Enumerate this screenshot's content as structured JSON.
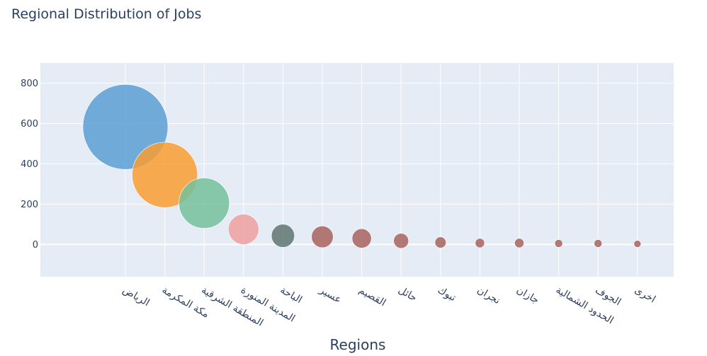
{
  "chart_data": {
    "type": "scatter",
    "variant": "bubble",
    "title": "Regional Distribution of Jobs",
    "xlabel": "Regions",
    "ylabel": "",
    "ylim": [
      -160,
      900
    ],
    "yticks": [
      0,
      200,
      400,
      600,
      800
    ],
    "grid": true,
    "legend": "none",
    "categories": [
      "الرياض",
      "مكة المكرمة",
      "المنطقة الشرقية",
      "المدينة المنورة",
      "الباحة",
      "عسير",
      "القصيم",
      "حائل",
      "تبوك",
      "نجران",
      "جازان",
      "الحدود الشمالية",
      "الجوف",
      "اخرى"
    ],
    "values": [
      583,
      345,
      205,
      75,
      43,
      38,
      30,
      18,
      10,
      7,
      7,
      5,
      5,
      3
    ],
    "colors": [
      "#5b9fd3",
      "#f99d30",
      "#76bf9b",
      "#f0a09d",
      "#5f7770",
      "#a8635e",
      "#a8635e",
      "#a8635e",
      "#a8635e",
      "#a8635e",
      "#a8635e",
      "#a8635e",
      "#a8635e",
      "#a8635e"
    ],
    "plot_bg": "#e5ecf6",
    "grid_color": "#ffffff",
    "text_color": "#2a3f5f"
  }
}
